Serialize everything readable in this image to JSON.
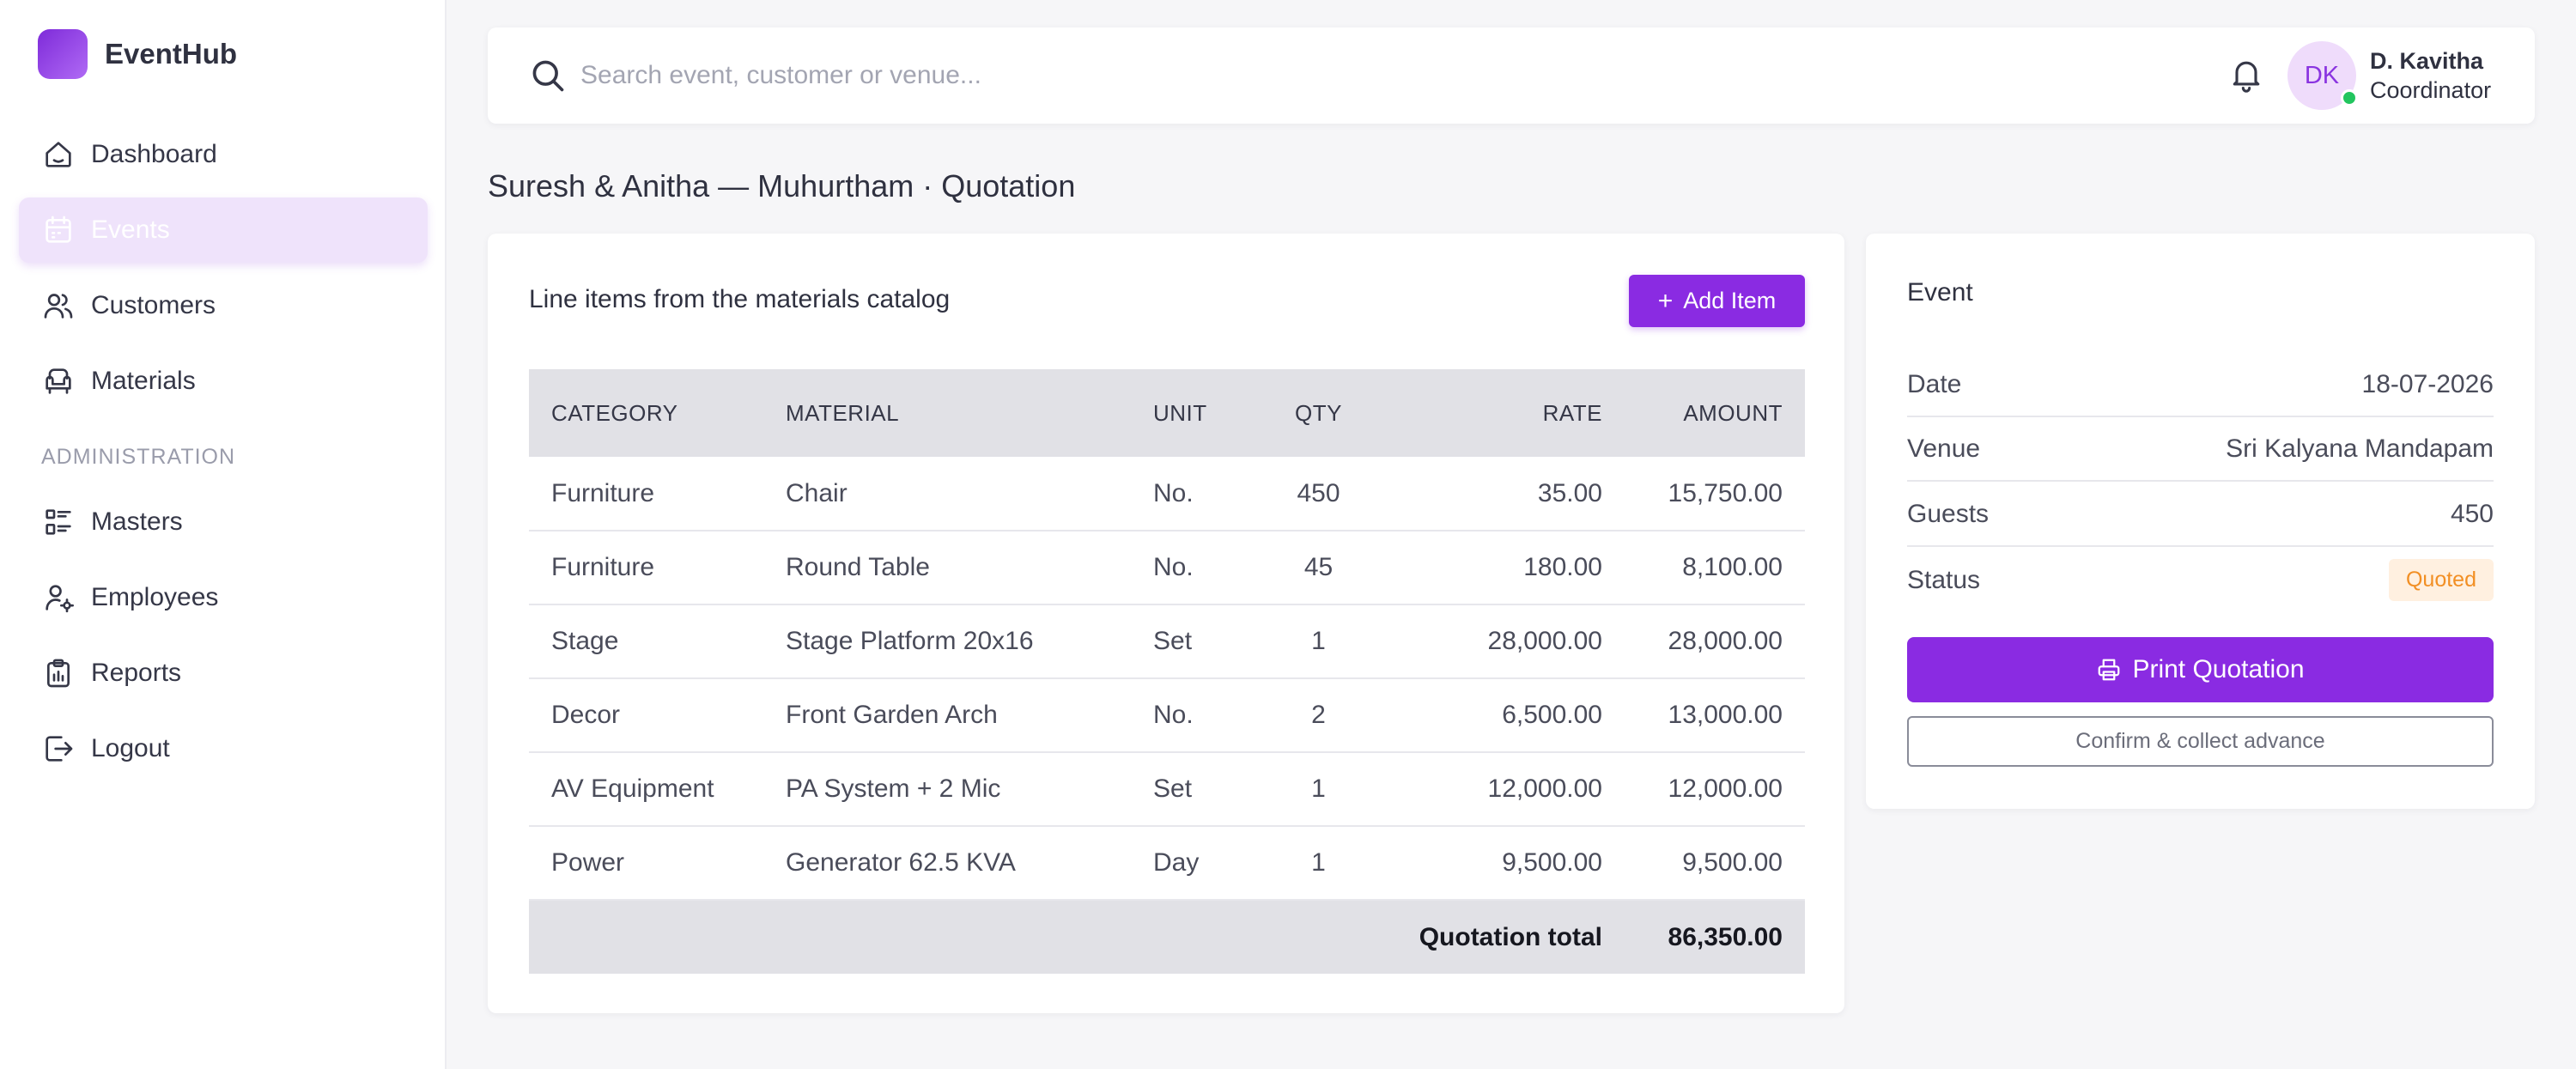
{
  "app": {
    "name": "EventHub"
  },
  "sidebar": {
    "items": [
      {
        "label": "Dashboard",
        "icon": "home-icon"
      },
      {
        "label": "Events",
        "icon": "calendar-icon",
        "active": true
      },
      {
        "label": "Customers",
        "icon": "users-icon"
      },
      {
        "label": "Materials",
        "icon": "armchair-icon"
      }
    ],
    "section_label": "ADMINISTRATION",
    "admin_items": [
      {
        "label": "Masters",
        "icon": "list-icon"
      },
      {
        "label": "Employees",
        "icon": "user-gear-icon"
      },
      {
        "label": "Reports",
        "icon": "clipboard-icon"
      },
      {
        "label": "Logout",
        "icon": "logout-icon"
      }
    ]
  },
  "header": {
    "search_placeholder": "Search event, customer or venue...",
    "user": {
      "initials": "DK",
      "name": "D. Kavitha",
      "role": "Coordinator",
      "online": true
    }
  },
  "page": {
    "title": "Suresh & Anitha — Muhurtham · Quotation"
  },
  "line_items": {
    "heading": "Line items from the materials catalog",
    "add_button": "Add Item",
    "columns": {
      "category": "CATEGORY",
      "material": "MATERIAL",
      "unit": "UNIT",
      "qty": "QTY",
      "rate": "RATE",
      "amount": "AMOUNT"
    },
    "rows": [
      {
        "category": "Furniture",
        "material": "Chair",
        "unit": "No.",
        "qty": "450",
        "rate": "35.00",
        "amount": "15,750.00"
      },
      {
        "category": "Furniture",
        "material": "Round Table",
        "unit": "No.",
        "qty": "45",
        "rate": "180.00",
        "amount": "8,100.00"
      },
      {
        "category": "Stage",
        "material": "Stage Platform 20x16",
        "unit": "Set",
        "qty": "1",
        "rate": "28,000.00",
        "amount": "28,000.00"
      },
      {
        "category": "Decor",
        "material": "Front Garden Arch",
        "unit": "No.",
        "qty": "2",
        "rate": "6,500.00",
        "amount": "13,000.00"
      },
      {
        "category": "AV Equipment",
        "material": "PA System + 2 Mic",
        "unit": "Set",
        "qty": "1",
        "rate": "12,000.00",
        "amount": "12,000.00"
      },
      {
        "category": "Power",
        "material": "Generator 62.5 KVA",
        "unit": "Day",
        "qty": "1",
        "rate": "9,500.00",
        "amount": "9,500.00"
      }
    ],
    "total_label": "Quotation total",
    "total_value": "86,350.00"
  },
  "event": {
    "title": "Event",
    "details": [
      {
        "label": "Date",
        "value": "18-07-2026"
      },
      {
        "label": "Venue",
        "value": "Sri Kalyana Mandapam"
      },
      {
        "label": "Guests",
        "value": "450"
      },
      {
        "label": "Status",
        "value": "Quoted",
        "badge": true
      }
    ],
    "print_button": "Print Quotation",
    "confirm_button": "Confirm & collect advance"
  },
  "colors": {
    "accent": "#8a2be2",
    "active_nav_bg": "#efe3fb",
    "status_badge_bg": "#fff0e0",
    "status_badge_text": "#f28f24",
    "online": "#22c55e"
  }
}
